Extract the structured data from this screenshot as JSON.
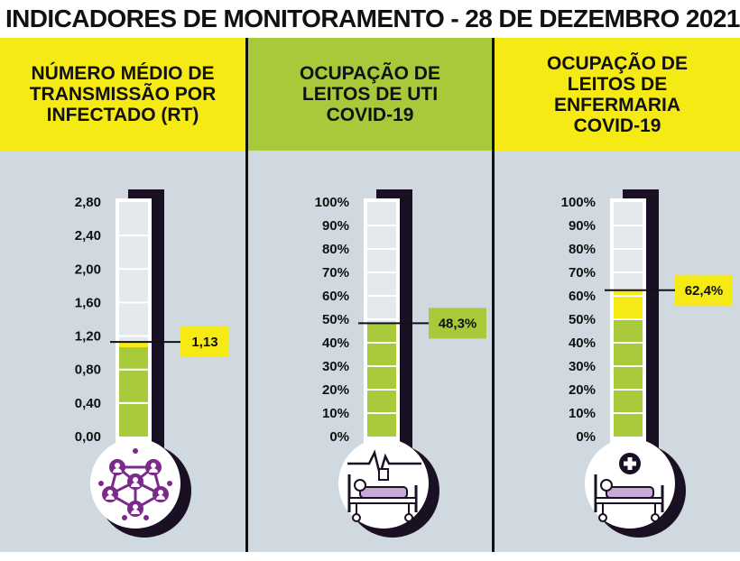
{
  "title": "INDICADORES DE MONITORAMENTO - 28 DE DEZEMBRO 2021",
  "colors": {
    "yellow": "#f5ea14",
    "green": "#a8c93a",
    "panel": "#cfd9df",
    "purple": "#7b2a8c",
    "dark": "#1a1024"
  },
  "panels": [
    {
      "header": [
        "NÚMERO MÉDIO DE",
        "TRANSMISSÃO POR",
        "INFECTADO (RT)"
      ],
      "header_color": "yellow",
      "ticks": [
        "2,80",
        "2,40",
        "2,00",
        "1,60",
        "1,20",
        "0,80",
        "0,40",
        "0,00"
      ],
      "value": 1.13,
      "max": 2.8,
      "value_label": "1,13",
      "callout_color": "yellow",
      "icon": "network-people-icon"
    },
    {
      "header": [
        "OCUPAÇÃO DE",
        "LEITOS DE UTI",
        "COVID-19"
      ],
      "header_color": "green",
      "ticks": [
        "100%",
        "90%",
        "80%",
        "70%",
        "60%",
        "50%",
        "40%",
        "30%",
        "20%",
        "10%",
        "0%"
      ],
      "value": 48.3,
      "max": 100,
      "value_label": "48,3%",
      "callout_color": "green",
      "icon": "icu-bed-heartbeat-icon"
    },
    {
      "header": [
        "OCUPAÇÃO DE",
        "LEITOS DE",
        "ENFERMARIA",
        "COVID-19"
      ],
      "header_color": "yellow",
      "ticks": [
        "100%",
        "90%",
        "80%",
        "70%",
        "60%",
        "50%",
        "40%",
        "30%",
        "20%",
        "10%",
        "0%"
      ],
      "value": 62.4,
      "max": 100,
      "value_label": "62,4%",
      "callout_color": "yellow",
      "icon": "ward-bed-cross-icon"
    }
  ]
}
